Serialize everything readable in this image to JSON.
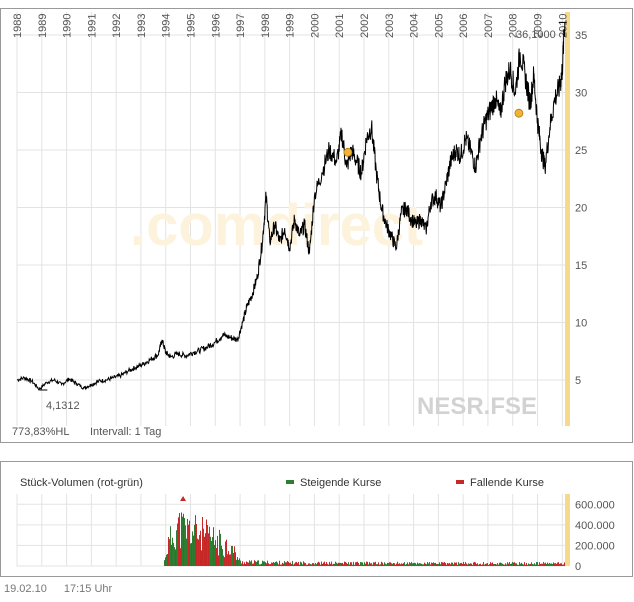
{
  "chart_data": [
    {
      "type": "line",
      "x_tick_labels": [
        "1988",
        "1989",
        "1990",
        "1991",
        "1992",
        "1993",
        "1994",
        "1995",
        "1996",
        "1997",
        "1998",
        "1999",
        "2000",
        "2001",
        "2002",
        "2003",
        "2004",
        "2005",
        "2006",
        "2007",
        "2008",
        "2009",
        "2010"
      ],
      "y_tick_labels": [
        "5",
        "10",
        "15",
        "20",
        "25",
        "30",
        "35"
      ],
      "ylim": [
        1,
        37
      ],
      "xlim": [
        1988.0,
        2010.15
      ],
      "watermark": ".comdirect",
      "symbol": "NESR.FSE",
      "stat_label": "773,83%HL",
      "interval_label": "Intervall: 1 Tag",
      "high_label": "36,1000",
      "low_label": "4,1312",
      "high_point": {
        "x": 2010.1,
        "y": 36.1
      },
      "low_point": {
        "x": 1988.9,
        "y": 4.1312
      },
      "series": [
        {
          "x": [
            1988.0,
            1988.3,
            1988.6,
            1988.9,
            1989.2,
            1989.5,
            1989.8,
            1990.1,
            1990.4,
            1990.7,
            1991.0,
            1991.3,
            1991.6,
            1991.9,
            1992.2,
            1992.5,
            1992.8,
            1993.1,
            1993.4,
            1993.7,
            1993.85,
            1994.0,
            1994.2,
            1994.5,
            1994.8,
            1995.1,
            1995.4,
            1995.7,
            1996.0,
            1996.3,
            1996.6,
            1996.9,
            1997.1,
            1997.3,
            1997.5,
            1997.7,
            1997.9,
            1998.05,
            1998.2,
            1998.4,
            1998.6,
            1998.8,
            1999.0,
            1999.2,
            1999.4,
            1999.6,
            1999.8,
            2000.0,
            2000.3,
            2000.6,
            2000.9,
            2001.1,
            2001.3,
            2001.5,
            2001.7,
            2001.9,
            2002.1,
            2002.3,
            2002.5,
            2002.7,
            2002.9,
            2003.1,
            2003.3,
            2003.5,
            2003.7,
            2003.9,
            2004.1,
            2004.3,
            2004.5,
            2004.7,
            2004.9,
            2005.1,
            2005.3,
            2005.5,
            2005.7,
            2005.9,
            2006.1,
            2006.3,
            2006.5,
            2006.7,
            2006.9,
            2007.1,
            2007.3,
            2007.5,
            2007.7,
            2007.9,
            2008.1,
            2008.3,
            2008.5,
            2008.7,
            2008.85,
            2009.0,
            2009.15,
            2009.3,
            2009.5,
            2009.7,
            2009.9,
            2010.0,
            2010.1
          ],
          "y": [
            5.0,
            5.2,
            4.9,
            4.2,
            4.8,
            5.0,
            4.6,
            5.1,
            4.7,
            4.3,
            4.6,
            4.9,
            5.0,
            5.2,
            5.4,
            5.8,
            6.1,
            6.4,
            6.8,
            7.2,
            8.5,
            7.4,
            7.0,
            7.3,
            7.1,
            7.4,
            7.6,
            7.9,
            8.3,
            8.9,
            8.7,
            8.5,
            10.0,
            11.5,
            12.5,
            14.0,
            17.0,
            21.0,
            17.0,
            18.5,
            17.0,
            18.2,
            16.5,
            19.0,
            17.5,
            18.5,
            16.0,
            21.0,
            23.0,
            25.0,
            24.0,
            26.5,
            23.5,
            25.0,
            24.0,
            23.0,
            26.0,
            27.0,
            23.0,
            20.0,
            18.5,
            17.5,
            16.5,
            19.5,
            20.0,
            19.0,
            18.5,
            19.0,
            18.0,
            20.5,
            21.0,
            20.0,
            22.0,
            24.0,
            25.0,
            24.5,
            26.0,
            25.0,
            23.5,
            26.0,
            27.5,
            28.5,
            29.5,
            28.0,
            31.0,
            32.0,
            30.0,
            33.5,
            31.5,
            29.0,
            31.5,
            27.5,
            25.0,
            23.5,
            27.0,
            29.5,
            30.5,
            32.0,
            36.1
          ]
        }
      ]
    },
    {
      "type": "bar",
      "title": "Stück-Volumen (rot-grün)",
      "legend": [
        {
          "name": "Steigende Kurse",
          "color": "#2e7d32"
        },
        {
          "name": "Fallende Kurse",
          "color": "#c62828"
        }
      ],
      "y_tick_labels": [
        "0",
        "200.000",
        "400.000",
        "600.000"
      ],
      "ylim": [
        0,
        700000
      ],
      "profile": [
        {
          "x": 1988.0,
          "v": 0
        },
        {
          "x": 1993.9,
          "v": 0
        },
        {
          "x": 1994.0,
          "v": 250000
        },
        {
          "x": 1994.4,
          "v": 600000
        },
        {
          "x": 1994.9,
          "v": 550000
        },
        {
          "x": 1995.4,
          "v": 500000
        },
        {
          "x": 1996.0,
          "v": 380000
        },
        {
          "x": 1996.6,
          "v": 300000
        },
        {
          "x": 1997.0,
          "v": 60000
        },
        {
          "x": 2000.0,
          "v": 45000
        },
        {
          "x": 2005.0,
          "v": 40000
        },
        {
          "x": 2010.1,
          "v": 40000
        }
      ]
    }
  ],
  "colors": {
    "line": "#000000",
    "highlight_bar": "#f7d98b",
    "marker": "#f2b233",
    "frame": "#999999",
    "grid": "#e3e3e3"
  },
  "footer": {
    "date": "19.02.10",
    "time": "17:15 Uhr"
  }
}
